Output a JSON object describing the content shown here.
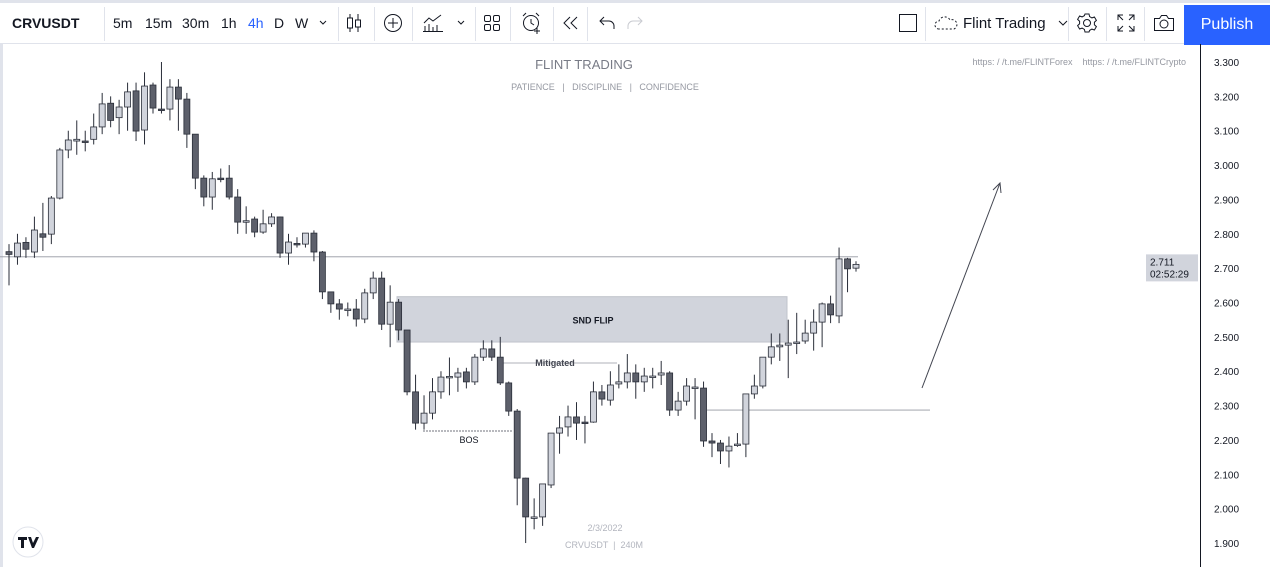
{
  "toolbar": {
    "symbol": "CRVUSDT",
    "intervals": [
      {
        "label": "5m"
      },
      {
        "label": "15m"
      },
      {
        "label": "30m"
      },
      {
        "label": "1h"
      },
      {
        "label": "4h",
        "active": true
      },
      {
        "label": "D"
      },
      {
        "label": "W"
      }
    ],
    "icons": [
      "chevron-down-icon",
      "candles-icon",
      "plus-circle-icon",
      "indicators-icon",
      "layout-grid-icon",
      "alarm-icon",
      "replay-icon",
      "undo-icon",
      "redo-icon",
      "rectangle-icon",
      "cloud-icon",
      "gear-icon",
      "fullscreen-icon",
      "camera-icon"
    ],
    "layout_name": "Flint Trading",
    "publish_label": "Publish",
    "accent": "#2962ff"
  },
  "watermark": {
    "title": "FLINT TRADING",
    "subtitle": "PATIENCE   |   DISCIPLINE   |   CONFIDENCE",
    "links": "https: / /t.me/FLINTForex    https: / /t.me/FLINTCrypto",
    "date": "2/3/2022",
    "symbol_tf": "CRVUSDT  |  240M"
  },
  "annotations": {
    "zone": "SND FLIP",
    "mitigated": "Mitigated",
    "bos": "BOS"
  },
  "price_axis": {
    "ticks": [
      "3.300",
      "3.200",
      "3.100",
      "3.000",
      "2.900",
      "2.800",
      "2.700",
      "2.600",
      "2.500",
      "2.400",
      "2.300",
      "2.200",
      "2.100",
      "2.000",
      "1.900"
    ],
    "last_price": "2.711",
    "countdown": "02:52:29"
  },
  "logo": "TV",
  "chart_data": {
    "type": "candlestick",
    "symbol": "CRVUSDT",
    "timeframe": "240M",
    "ylim": [
      1.88,
      3.33
    ],
    "colors": {
      "up": "#d1d4dc",
      "down": "#5d606b",
      "outline": "#2a2e39"
    },
    "ohlc": [
      [
        2.748,
        2.77,
        2.65,
        2.74
      ],
      [
        2.733,
        2.8,
        2.71,
        2.773
      ],
      [
        2.775,
        2.79,
        2.73,
        2.755
      ],
      [
        2.747,
        2.85,
        2.73,
        2.811
      ],
      [
        2.8,
        2.89,
        2.75,
        2.79
      ],
      [
        2.799,
        2.91,
        2.77,
        2.904
      ],
      [
        2.904,
        3.05,
        2.9,
        3.044
      ],
      [
        3.044,
        3.1,
        3.02,
        3.073
      ],
      [
        3.07,
        3.13,
        3.03,
        3.075
      ],
      [
        3.07,
        3.1,
        3.04,
        3.068
      ],
      [
        3.075,
        3.15,
        3.06,
        3.111
      ],
      [
        3.111,
        3.21,
        3.09,
        3.178
      ],
      [
        3.18,
        3.2,
        3.11,
        3.13
      ],
      [
        3.138,
        3.19,
        3.09,
        3.169
      ],
      [
        3.169,
        3.24,
        3.1,
        3.213
      ],
      [
        3.216,
        3.24,
        3.07,
        3.099
      ],
      [
        3.102,
        3.27,
        3.06,
        3.23
      ],
      [
        3.233,
        3.24,
        3.15,
        3.166
      ],
      [
        3.163,
        3.3,
        3.15,
        3.16
      ],
      [
        3.163,
        3.25,
        3.13,
        3.227
      ],
      [
        3.227,
        3.25,
        3.1,
        3.192
      ],
      [
        3.192,
        3.21,
        3.05,
        3.09
      ],
      [
        3.09,
        3.09,
        2.93,
        2.962
      ],
      [
        2.962,
        2.97,
        2.88,
        2.907
      ],
      [
        2.907,
        2.98,
        2.87,
        2.96
      ],
      [
        2.962,
        2.99,
        2.95,
        2.96
      ],
      [
        2.962,
        3.0,
        2.9,
        2.907
      ],
      [
        2.907,
        2.93,
        2.8,
        2.834
      ],
      [
        2.834,
        2.88,
        2.8,
        2.838
      ],
      [
        2.843,
        2.85,
        2.79,
        2.805
      ],
      [
        2.805,
        2.87,
        2.8,
        2.829
      ],
      [
        2.829,
        2.86,
        2.82,
        2.849
      ],
      [
        2.849,
        2.85,
        2.73,
        2.744
      ],
      [
        2.744,
        2.8,
        2.71,
        2.776
      ],
      [
        2.772,
        2.79,
        2.76,
        2.77
      ],
      [
        2.77,
        2.8,
        2.76,
        2.802
      ],
      [
        2.802,
        2.81,
        2.72,
        2.747
      ],
      [
        2.747,
        2.75,
        2.61,
        2.631
      ],
      [
        2.631,
        2.63,
        2.57,
        2.596
      ],
      [
        2.596,
        2.61,
        2.55,
        2.581
      ],
      [
        2.581,
        2.6,
        2.56,
        2.581
      ],
      [
        2.581,
        2.61,
        2.53,
        2.552
      ],
      [
        2.552,
        2.64,
        2.54,
        2.628
      ],
      [
        2.628,
        2.69,
        2.61,
        2.671
      ],
      [
        2.671,
        2.69,
        2.52,
        2.537
      ],
      [
        2.537,
        2.65,
        2.47,
        2.601
      ],
      [
        2.601,
        2.61,
        2.49,
        2.52
      ],
      [
        2.52,
        2.52,
        2.33,
        2.34
      ],
      [
        2.34,
        2.39,
        2.23,
        2.249
      ],
      [
        2.249,
        2.33,
        2.23,
        2.278
      ],
      [
        2.278,
        2.38,
        2.26,
        2.34
      ],
      [
        2.34,
        2.4,
        2.32,
        2.383
      ],
      [
        2.383,
        2.44,
        2.33,
        2.385
      ],
      [
        2.383,
        2.41,
        2.34,
        2.395
      ],
      [
        2.398,
        2.41,
        2.35,
        2.369
      ],
      [
        2.369,
        2.45,
        2.36,
        2.441
      ],
      [
        2.441,
        2.49,
        2.43,
        2.465
      ],
      [
        2.465,
        2.49,
        2.43,
        2.441
      ],
      [
        2.441,
        2.5,
        2.36,
        2.366
      ],
      [
        2.366,
        2.37,
        2.27,
        2.284
      ],
      [
        2.284,
        2.29,
        2.01,
        2.089
      ],
      [
        2.089,
        2.09,
        1.9,
        1.976
      ],
      [
        1.976,
        2.03,
        1.94,
        1.976
      ],
      [
        1.976,
        2.07,
        1.95,
        2.072
      ],
      [
        2.069,
        2.22,
        2.06,
        2.22
      ],
      [
        2.22,
        2.27,
        2.16,
        2.235
      ],
      [
        2.238,
        2.3,
        2.21,
        2.267
      ],
      [
        2.267,
        2.31,
        2.2,
        2.249
      ],
      [
        2.252,
        2.27,
        2.19,
        2.25
      ],
      [
        2.252,
        2.37,
        2.25,
        2.34
      ],
      [
        2.34,
        2.36,
        2.3,
        2.319
      ],
      [
        2.316,
        2.4,
        2.3,
        2.36
      ],
      [
        2.363,
        2.42,
        2.35,
        2.369
      ],
      [
        2.369,
        2.45,
        2.35,
        2.395
      ],
      [
        2.395,
        2.42,
        2.32,
        2.369
      ],
      [
        2.369,
        2.41,
        2.34,
        2.386
      ],
      [
        2.386,
        2.41,
        2.35,
        2.386
      ],
      [
        2.389,
        2.43,
        2.36,
        2.395
      ],
      [
        2.395,
        2.4,
        2.27,
        2.287
      ],
      [
        2.287,
        2.34,
        2.27,
        2.313
      ],
      [
        2.313,
        2.38,
        2.3,
        2.357
      ],
      [
        2.354,
        2.38,
        2.26,
        2.354
      ],
      [
        2.351,
        2.37,
        2.18,
        2.197
      ],
      [
        2.197,
        2.22,
        2.15,
        2.191
      ],
      [
        2.191,
        2.2,
        2.13,
        2.168
      ],
      [
        2.168,
        2.21,
        2.12,
        2.182
      ],
      [
        2.188,
        2.22,
        2.18,
        2.188
      ],
      [
        2.188,
        2.33,
        2.15,
        2.334
      ],
      [
        2.334,
        2.39,
        2.32,
        2.357
      ],
      [
        2.357,
        2.44,
        2.35,
        2.441
      ],
      [
        2.441,
        2.51,
        2.42,
        2.471
      ],
      [
        2.471,
        2.51,
        2.43,
        2.476
      ],
      [
        2.476,
        2.55,
        2.38,
        2.482
      ],
      [
        2.485,
        2.57,
        2.45,
        2.485
      ],
      [
        2.488,
        2.55,
        2.48,
        2.511
      ],
      [
        2.511,
        2.58,
        2.46,
        2.543
      ],
      [
        2.543,
        2.6,
        2.47,
        2.596
      ],
      [
        2.596,
        2.62,
        2.54,
        2.564
      ],
      [
        2.561,
        2.76,
        2.54,
        2.727
      ],
      [
        2.727,
        2.73,
        2.63,
        2.698
      ],
      [
        2.7,
        2.72,
        2.69,
        2.711
      ]
    ]
  }
}
